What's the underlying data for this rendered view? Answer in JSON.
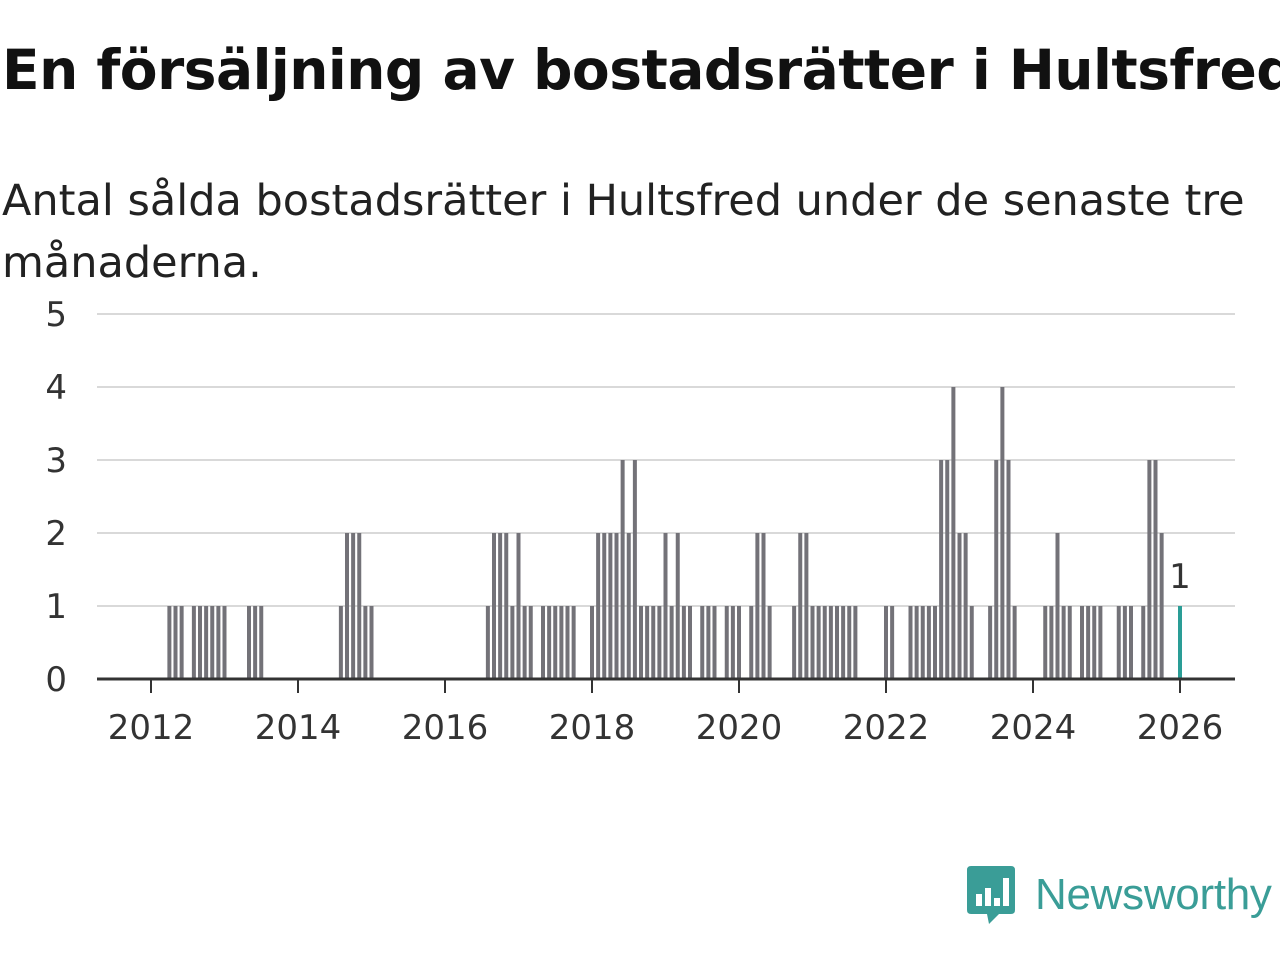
{
  "header": {
    "title": "En försäljning av bostadsrätter i Hultsfred",
    "subtitle": "Antal sålda bostadsrätter i Hultsfred under de senaste tre månaderna."
  },
  "brand": {
    "name": "Newsworthy",
    "logo_icon": "bar-chart-speech-bubble-icon",
    "color": "#3a9d97"
  },
  "colors": {
    "bar": "#737278",
    "highlight": "#2a9d96",
    "grid": "#d9d9d9",
    "axis": "#333333"
  },
  "chart_data": {
    "type": "bar",
    "title": "En försäljning av bostadsrätter i Hultsfred",
    "subtitle": "Antal sålda bostadsrätter i Hultsfred under de senaste tre månaderna.",
    "x_axis": {
      "ticks": [
        "2012",
        "2014",
        "2016",
        "2018",
        "2020",
        "2022",
        "2024",
        "2026"
      ],
      "range": [
        "2011-06",
        "2026-08"
      ]
    },
    "y_axis": {
      "ticks": [
        0,
        1,
        2,
        3,
        4,
        5
      ],
      "range": [
        0,
        5
      ]
    },
    "grid": true,
    "highlight": {
      "x": "2026-01",
      "value": 1,
      "label": "1"
    },
    "series": [
      {
        "x": [
          "2012-04",
          "2012-05",
          "2012-06",
          "2012-08",
          "2012-09",
          "2012-10",
          "2012-11",
          "2012-12",
          "2013-01",
          "2013-05",
          "2013-06",
          "2013-07",
          "2014-08",
          "2014-09",
          "2014-10",
          "2014-11",
          "2014-12",
          "2015-01",
          "2016-08",
          "2016-09",
          "2016-10",
          "2016-11",
          "2016-12",
          "2017-01",
          "2017-02",
          "2017-03",
          "2017-05",
          "2017-06",
          "2017-07",
          "2017-08",
          "2017-09",
          "2017-10",
          "2018-01",
          "2018-02",
          "2018-03",
          "2018-04",
          "2018-05",
          "2018-06",
          "2018-07",
          "2018-08",
          "2018-09",
          "2018-10",
          "2018-11",
          "2018-12",
          "2019-01",
          "2019-02",
          "2019-03",
          "2019-04",
          "2019-05",
          "2019-07",
          "2019-08",
          "2019-09",
          "2019-11",
          "2019-12",
          "2020-01",
          "2020-03",
          "2020-04",
          "2020-05",
          "2020-06",
          "2020-10",
          "2020-11",
          "2020-12",
          "2021-01",
          "2021-02",
          "2021-03",
          "2021-04",
          "2021-05",
          "2021-06",
          "2021-07",
          "2021-08",
          "2022-01",
          "2022-02",
          "2022-05",
          "2022-06",
          "2022-07",
          "2022-08",
          "2022-09",
          "2022-10",
          "2022-11",
          "2022-12",
          "2023-01",
          "2023-02",
          "2023-03",
          "2023-06",
          "2023-07",
          "2023-08",
          "2023-09",
          "2023-10",
          "2024-03",
          "2024-04",
          "2024-05",
          "2024-06",
          "2024-07",
          "2024-09",
          "2024-10",
          "2024-11",
          "2024-12",
          "2025-03",
          "2025-04",
          "2025-05",
          "2025-07",
          "2025-08",
          "2025-09",
          "2025-10",
          "2026-01"
        ],
        "values": [
          1,
          1,
          1,
          1,
          1,
          1,
          1,
          1,
          1,
          1,
          1,
          1,
          1,
          2,
          2,
          2,
          1,
          1,
          1,
          2,
          2,
          2,
          1,
          2,
          1,
          1,
          1,
          1,
          1,
          1,
          1,
          1,
          1,
          2,
          2,
          2,
          2,
          3,
          2,
          3,
          1,
          1,
          1,
          1,
          2,
          1,
          2,
          1,
          1,
          1,
          1,
          1,
          1,
          1,
          1,
          1,
          2,
          2,
          1,
          1,
          2,
          2,
          1,
          1,
          1,
          1,
          1,
          1,
          1,
          1,
          1,
          1,
          1,
          1,
          1,
          1,
          1,
          3,
          3,
          4,
          2,
          2,
          1,
          1,
          3,
          4,
          3,
          1,
          1,
          1,
          2,
          1,
          1,
          1,
          1,
          1,
          1,
          1,
          1,
          1,
          1,
          3,
          3,
          2,
          1
        ]
      }
    ]
  }
}
